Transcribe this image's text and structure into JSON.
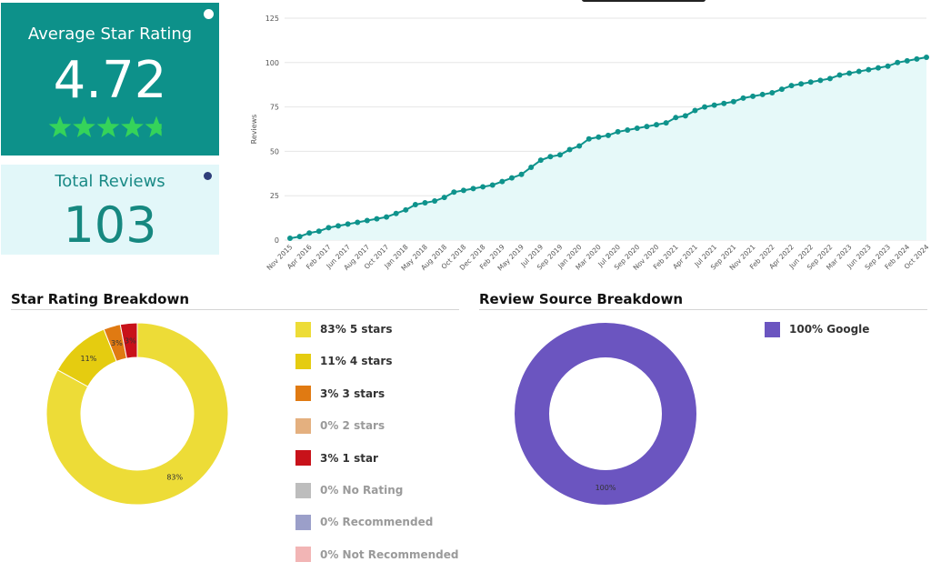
{
  "avg_card": {
    "title": "Average Star Rating",
    "value": "4.72",
    "stars": 4.72,
    "color": "#0d918a",
    "star_color": "#35d35a",
    "info_icon": "info-icon"
  },
  "total_card": {
    "title": "Total Reviews",
    "value": "103",
    "color": "#e2f7f9",
    "info_icon": "info-icon"
  },
  "star_breakdown": {
    "title": "Star Rating Breakdown",
    "legend": [
      {
        "label": "83% 5 stars",
        "color": "#eddc37",
        "muted": false
      },
      {
        "label": "11% 4 stars",
        "color": "#e5cc10",
        "muted": false
      },
      {
        "label": "3% 3 stars",
        "color": "#e07a12",
        "muted": false
      },
      {
        "label": "0% 2 stars",
        "color": "#e4b07f",
        "muted": true
      },
      {
        "label": "3% 1 star",
        "color": "#c8121a",
        "muted": false
      },
      {
        "label": "0% No Rating",
        "color": "#bdbdbd",
        "muted": true
      },
      {
        "label": "0% Recommended",
        "color": "#9b9fc9",
        "muted": true
      },
      {
        "label": "0% Not Recommended",
        "color": "#f2b5b5",
        "muted": true
      }
    ]
  },
  "source_breakdown": {
    "title": "Review Source Breakdown",
    "legend": [
      {
        "label": "100% Google",
        "color": "#6b55c0",
        "muted": false
      }
    ]
  },
  "chart_data": [
    {
      "type": "area",
      "xlabel": "",
      "ylabel": "Reviews",
      "ylim": [
        0,
        125
      ],
      "yticks": [
        0,
        25,
        50,
        75,
        100,
        125
      ],
      "grid": true,
      "color": "#0e938c",
      "fill": "#e6f9f9",
      "x_tick_labels": [
        "Nov 2015",
        "Apr 2016",
        "Feb 2017",
        "Jun 2017",
        "Aug 2017",
        "Oct 2017",
        "Jan 2018",
        "May 2018",
        "Aug 2018",
        "Oct 2018",
        "Dec 2018",
        "Feb 2019",
        "May 2019",
        "Jul 2019",
        "Sep 2019",
        "Jan 2020",
        "Mar 2020",
        "Jul 2020",
        "Sep 2020",
        "Nov 2020",
        "Feb 2021",
        "Apr 2021",
        "Jul 2021",
        "Sep 2021",
        "Nov 2021",
        "Feb 2022",
        "Apr 2022",
        "Jun 2022",
        "Sep 2022",
        "Mar 2023",
        "Jun 2023",
        "Sep 2023",
        "Feb 2024",
        "Oct 2024"
      ],
      "values": [
        1,
        2,
        4,
        5,
        7,
        8,
        9,
        10,
        11,
        12,
        13,
        15,
        17,
        20,
        21,
        22,
        24,
        27,
        28,
        29,
        30,
        31,
        33,
        35,
        37,
        41,
        45,
        47,
        48,
        51,
        53,
        57,
        58,
        59,
        61,
        62,
        63,
        64,
        65,
        66,
        69,
        70,
        73,
        75,
        76,
        77,
        78,
        80,
        81,
        82,
        83,
        85,
        87,
        88,
        89,
        90,
        91,
        93,
        94,
        95,
        96,
        97,
        98,
        100,
        101,
        102,
        103
      ]
    },
    {
      "type": "pie",
      "title": "Star Rating Breakdown",
      "labels": [
        "5 stars",
        "4 stars",
        "3 stars",
        "1 star"
      ],
      "values": [
        83,
        11,
        3,
        3
      ],
      "data_labels": [
        "83%",
        "11%",
        "3%",
        "3%"
      ],
      "colors": [
        "#eddc37",
        "#e5cc10",
        "#e07a12",
        "#c8121a"
      ],
      "start_angle": 0,
      "donut": true
    },
    {
      "type": "pie",
      "title": "Review Source Breakdown",
      "labels": [
        "Google"
      ],
      "values": [
        100
      ],
      "data_labels": [
        "100%"
      ],
      "colors": [
        "#6b55c0"
      ],
      "donut": true
    }
  ]
}
